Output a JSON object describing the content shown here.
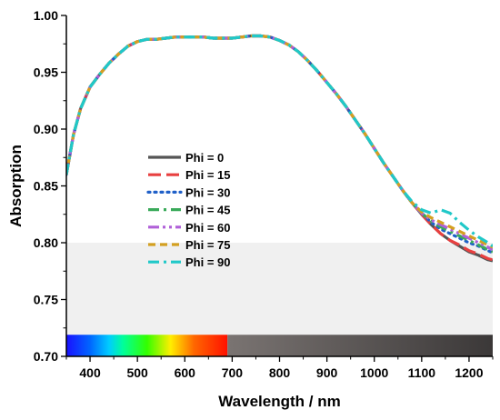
{
  "chart_data": {
    "type": "line",
    "xlabel": "Wavelength / nm",
    "ylabel": "Absorption",
    "xlim": [
      350,
      1250
    ],
    "ylim": [
      0.7,
      1.0
    ],
    "xticks": [
      400,
      500,
      600,
      700,
      800,
      900,
      1000,
      1100,
      1200
    ],
    "xtick_labels": [
      "400",
      "500",
      "600",
      "700",
      "800",
      "900",
      "1000",
      "1100",
      "1200"
    ],
    "yticks": [
      0.7,
      0.75,
      0.8,
      0.85,
      0.9,
      0.95,
      1.0
    ],
    "ytick_labels": [
      "0.70",
      "0.75",
      "0.80",
      "0.85",
      "0.90",
      "0.95",
      "1.00"
    ],
    "grid": false,
    "legend_position": "left-center",
    "shaded_region": {
      "ymin": 0.7,
      "ymax": 0.8,
      "color": "#f0f0f0"
    },
    "spectrum_bar": {
      "ymin": 0.7,
      "ymax": 0.719,
      "visible_range": [
        350,
        690
      ],
      "visible_stops": [
        {
          "x": 350,
          "color": "#1a10ff"
        },
        {
          "x": 400,
          "color": "#0066ff"
        },
        {
          "x": 440,
          "color": "#00ccff"
        },
        {
          "x": 470,
          "color": "#00ff99"
        },
        {
          "x": 520,
          "color": "#33ff00"
        },
        {
          "x": 570,
          "color": "#ffee00"
        },
        {
          "x": 620,
          "color": "#ff6600"
        },
        {
          "x": 690,
          "color": "#ff1100"
        }
      ],
      "ir_range": [
        690,
        1250
      ],
      "ir_colors": [
        "#7a7472",
        "#3b3838"
      ]
    },
    "x": [
      350,
      365,
      380,
      400,
      420,
      440,
      460,
      480,
      500,
      520,
      540,
      560,
      580,
      600,
      620,
      640,
      660,
      680,
      700,
      720,
      740,
      760,
      780,
      800,
      820,
      840,
      860,
      880,
      900,
      920,
      940,
      960,
      980,
      1000,
      1020,
      1040,
      1060,
      1080,
      1100,
      1120,
      1140,
      1160,
      1180,
      1200,
      1220,
      1240,
      1250
    ],
    "series": [
      {
        "name": "Phi = 0",
        "color": "#555555",
        "dash": "solid",
        "values": [
          0.86,
          0.895,
          0.918,
          0.937,
          0.948,
          0.958,
          0.966,
          0.973,
          0.977,
          0.979,
          0.979,
          0.98,
          0.981,
          0.981,
          0.981,
          0.981,
          0.98,
          0.98,
          0.98,
          0.981,
          0.982,
          0.982,
          0.981,
          0.978,
          0.974,
          0.968,
          0.96,
          0.951,
          0.941,
          0.931,
          0.92,
          0.908,
          0.896,
          0.883,
          0.87,
          0.858,
          0.846,
          0.835,
          0.825,
          0.816,
          0.808,
          0.802,
          0.797,
          0.792,
          0.789,
          0.785,
          0.784
        ]
      },
      {
        "name": "Phi = 15",
        "color": "#e84040",
        "dash": "long-dash",
        "values": [
          0.86,
          0.895,
          0.918,
          0.937,
          0.948,
          0.958,
          0.966,
          0.973,
          0.977,
          0.979,
          0.979,
          0.98,
          0.981,
          0.981,
          0.981,
          0.981,
          0.98,
          0.98,
          0.98,
          0.981,
          0.982,
          0.982,
          0.981,
          0.978,
          0.974,
          0.968,
          0.96,
          0.951,
          0.941,
          0.931,
          0.92,
          0.908,
          0.896,
          0.883,
          0.87,
          0.858,
          0.846,
          0.835,
          0.825,
          0.816,
          0.808,
          0.802,
          0.798,
          0.793,
          0.79,
          0.786,
          0.785
        ]
      },
      {
        "name": "Phi = 30",
        "color": "#2060c8",
        "dash": "dot",
        "values": [
          0.86,
          0.895,
          0.918,
          0.937,
          0.948,
          0.958,
          0.966,
          0.973,
          0.977,
          0.979,
          0.979,
          0.98,
          0.981,
          0.981,
          0.981,
          0.981,
          0.98,
          0.98,
          0.98,
          0.981,
          0.982,
          0.982,
          0.981,
          0.978,
          0.974,
          0.968,
          0.96,
          0.951,
          0.941,
          0.931,
          0.92,
          0.908,
          0.896,
          0.883,
          0.87,
          0.858,
          0.846,
          0.835,
          0.826,
          0.818,
          0.812,
          0.808,
          0.804,
          0.8,
          0.797,
          0.793,
          0.791
        ]
      },
      {
        "name": "Phi = 45",
        "color": "#3aaa5a",
        "dash": "dash-dot",
        "values": [
          0.86,
          0.895,
          0.918,
          0.937,
          0.948,
          0.958,
          0.966,
          0.973,
          0.977,
          0.979,
          0.979,
          0.98,
          0.981,
          0.981,
          0.981,
          0.981,
          0.98,
          0.98,
          0.98,
          0.981,
          0.982,
          0.982,
          0.981,
          0.978,
          0.974,
          0.968,
          0.96,
          0.951,
          0.941,
          0.931,
          0.92,
          0.908,
          0.896,
          0.883,
          0.87,
          0.858,
          0.846,
          0.835,
          0.826,
          0.819,
          0.814,
          0.81,
          0.806,
          0.802,
          0.798,
          0.794,
          0.792
        ]
      },
      {
        "name": "Phi = 60",
        "color": "#b060d8",
        "dash": "dash-dot-dot",
        "values": [
          0.86,
          0.895,
          0.918,
          0.937,
          0.948,
          0.958,
          0.966,
          0.973,
          0.977,
          0.979,
          0.979,
          0.98,
          0.981,
          0.981,
          0.981,
          0.981,
          0.98,
          0.98,
          0.98,
          0.981,
          0.982,
          0.982,
          0.981,
          0.978,
          0.974,
          0.968,
          0.96,
          0.951,
          0.941,
          0.931,
          0.92,
          0.908,
          0.896,
          0.883,
          0.87,
          0.858,
          0.846,
          0.835,
          0.826,
          0.82,
          0.816,
          0.812,
          0.808,
          0.804,
          0.8,
          0.796,
          0.794
        ]
      },
      {
        "name": "Phi = 75",
        "color": "#d4a020",
        "dash": "short-dash",
        "values": [
          0.86,
          0.895,
          0.918,
          0.937,
          0.948,
          0.958,
          0.966,
          0.973,
          0.977,
          0.979,
          0.979,
          0.98,
          0.981,
          0.981,
          0.981,
          0.981,
          0.98,
          0.98,
          0.98,
          0.981,
          0.982,
          0.982,
          0.981,
          0.978,
          0.974,
          0.968,
          0.96,
          0.951,
          0.941,
          0.931,
          0.92,
          0.908,
          0.896,
          0.883,
          0.87,
          0.858,
          0.846,
          0.835,
          0.827,
          0.822,
          0.818,
          0.814,
          0.81,
          0.806,
          0.802,
          0.798,
          0.796
        ]
      },
      {
        "name": "Phi = 90",
        "color": "#20c8c8",
        "dash": "dash-dot",
        "values": [
          0.86,
          0.895,
          0.918,
          0.937,
          0.948,
          0.958,
          0.966,
          0.973,
          0.977,
          0.979,
          0.979,
          0.98,
          0.981,
          0.981,
          0.981,
          0.981,
          0.98,
          0.98,
          0.98,
          0.981,
          0.982,
          0.982,
          0.981,
          0.978,
          0.974,
          0.968,
          0.96,
          0.951,
          0.941,
          0.931,
          0.92,
          0.908,
          0.896,
          0.883,
          0.87,
          0.858,
          0.846,
          0.836,
          0.829,
          0.826,
          0.829,
          0.826,
          0.818,
          0.811,
          0.805,
          0.8,
          0.797
        ]
      }
    ]
  }
}
